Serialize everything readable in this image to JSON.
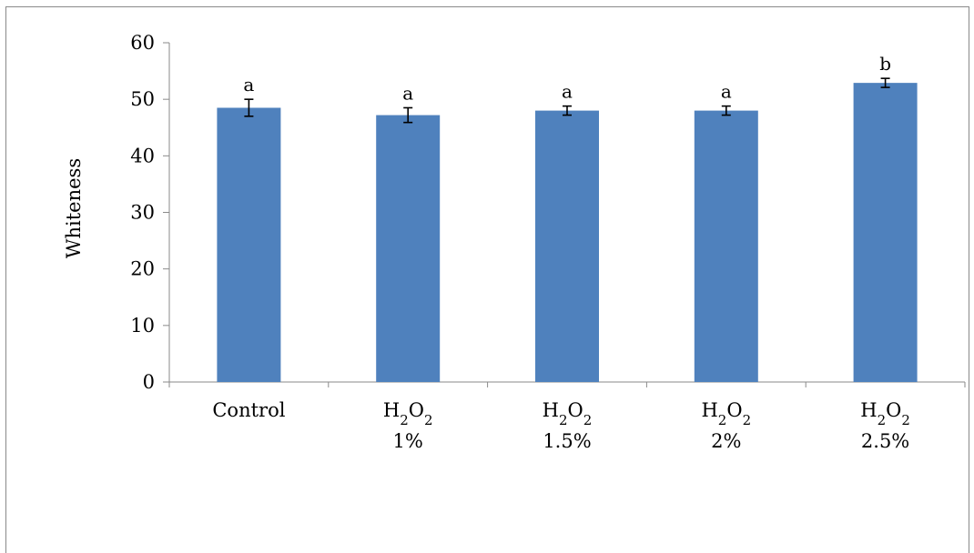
{
  "chart_data": {
    "type": "bar",
    "title": "",
    "xlabel": "",
    "ylabel": "Whiteness",
    "ylim": [
      0,
      60
    ],
    "yticks": [
      0,
      10,
      20,
      30,
      40,
      50,
      60
    ],
    "grid": false,
    "legend": "none",
    "bar_color": "#4f81bd",
    "categories": [
      {
        "line1": "Control",
        "line2": "",
        "formula": false
      },
      {
        "line1": "H2O2",
        "line2": "1%",
        "formula": true
      },
      {
        "line1": "H2O2",
        "line2": "1.5%",
        "formula": true
      },
      {
        "line1": "H2O2",
        "line2": "2%",
        "formula": true
      },
      {
        "line1": "H2O2",
        "line2": "2.5%",
        "formula": true
      }
    ],
    "values": [
      48.5,
      47.2,
      48.0,
      48.0,
      52.9
    ],
    "errors": [
      1.5,
      1.3,
      0.8,
      0.8,
      0.8
    ],
    "significance": [
      "a",
      "a",
      "a",
      "a",
      "b"
    ]
  }
}
